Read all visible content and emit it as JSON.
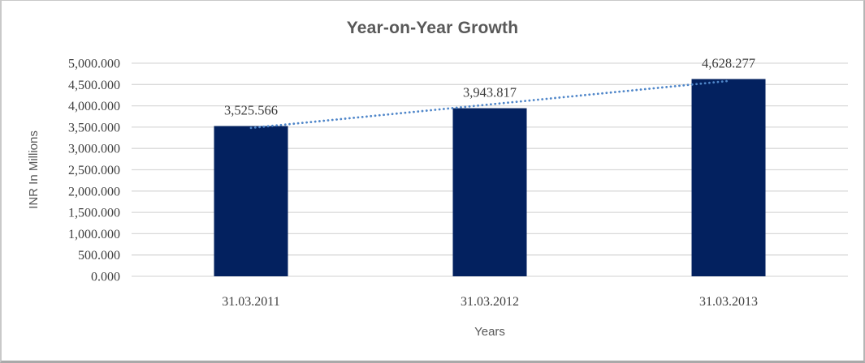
{
  "chart_data": {
    "type": "bar",
    "title": "Year-on-Year Growth",
    "xlabel": "Years",
    "ylabel": "INR In Millions",
    "categories": [
      "31.03.2011",
      "31.03.2012",
      "31.03.2013"
    ],
    "series": [
      {
        "name": "INR In Millions",
        "values": [
          3525.566,
          3943.817,
          4628.277
        ]
      }
    ],
    "data_labels": [
      "3,525.566",
      "3,943.817",
      "4,628.277"
    ],
    "ylim": [
      0,
      5000
    ],
    "ytick_step": 500,
    "ytick_labels": [
      "0.000",
      "500.000",
      "1,000.000",
      "1,500.000",
      "2,000.000",
      "2,500.000",
      "3,000.000",
      "3,500.000",
      "4,000.000",
      "4,500.000",
      "5,000.000"
    ],
    "grid": true,
    "legend": "none",
    "trendline": {
      "type": "linear",
      "style": "dotted",
      "color": "#4f86c9"
    },
    "colors": {
      "bar": "#03215f",
      "gridline": "#d9d9d9",
      "title_text": "#595959",
      "axis_title_text": "#595959",
      "tick_text": "#404040",
      "frame_border": "#c9c9c9"
    }
  }
}
